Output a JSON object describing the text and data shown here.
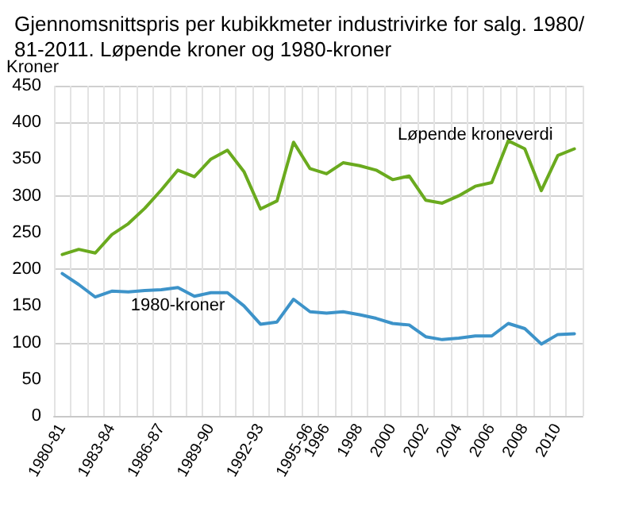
{
  "chart_data": {
    "type": "line",
    "title": "Gjennomsnittspris per kubikkmeter industrivirke for salg. 1980/81-2011. Løpende kroner og 1980-kroner",
    "ylabel": "Kroner",
    "categories": [
      "1980-81",
      null,
      null,
      "1983-84",
      null,
      null,
      "1986-87",
      null,
      null,
      "1989-90",
      null,
      null,
      "1992-93",
      null,
      null,
      "1995-96",
      "1996",
      null,
      "1998",
      null,
      "2000",
      null,
      "2002",
      null,
      "2004",
      null,
      "2006",
      null,
      "2008",
      null,
      "2010",
      null
    ],
    "series": [
      {
        "name": "Løpende kroneverdi",
        "color": "#6aaa1e",
        "values": [
          220,
          227,
          222,
          247,
          262,
          283,
          308,
          335,
          326,
          350,
          362,
          333,
          282,
          293,
          373,
          337,
          330,
          345,
          341,
          335,
          322,
          327,
          294,
          290,
          300,
          313,
          318,
          375,
          364,
          307,
          355,
          364
        ]
      },
      {
        "name": "1980-kroner",
        "color": "#3d93c9",
        "values": [
          194,
          179,
          162,
          170,
          169,
          171,
          172,
          175,
          163,
          168,
          168,
          150,
          125,
          128,
          159,
          142,
          140,
          142,
          138,
          133,
          126,
          124,
          108,
          104,
          106,
          109,
          109,
          126,
          119,
          98,
          111,
          112
        ]
      }
    ],
    "ylim": [
      0,
      450
    ],
    "yticks": [
      0,
      50,
      100,
      150,
      200,
      250,
      300,
      350,
      400,
      450
    ],
    "grid": true,
    "legend": false,
    "marker": "none",
    "line_style": "solid"
  }
}
